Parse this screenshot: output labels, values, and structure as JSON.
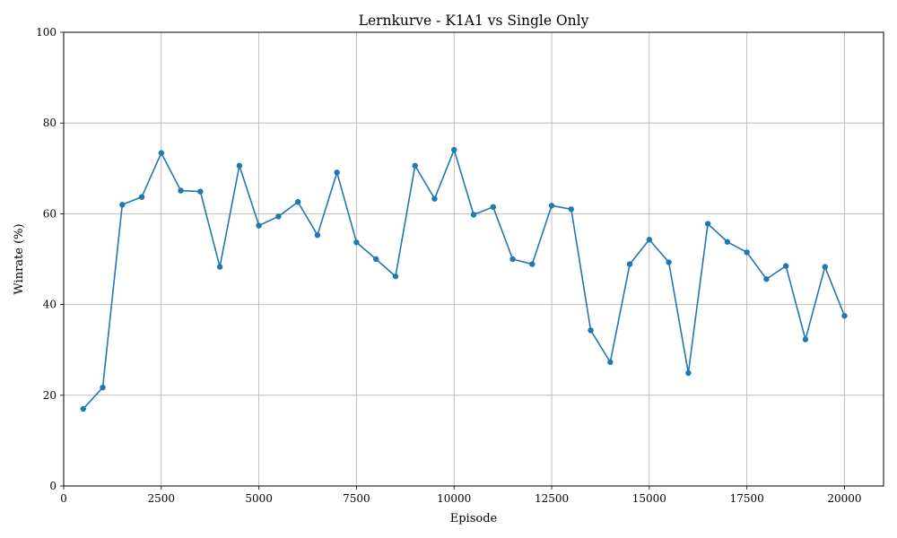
{
  "chart_data": {
    "type": "line",
    "title": "Lernkurve - K1A1 vs Single Only",
    "xlabel": "Episode",
    "ylabel": "Winrate (%)",
    "xlim": [
      0,
      21000
    ],
    "ylim": [
      0,
      100
    ],
    "xticks": [
      0,
      2500,
      5000,
      7500,
      10000,
      12500,
      15000,
      17500,
      20000
    ],
    "yticks": [
      0,
      20,
      40,
      60,
      80,
      100
    ],
    "grid": true,
    "series": [
      {
        "color": "#1f77b4",
        "marker": "circle",
        "x": [
          500,
          1000,
          1500,
          2000,
          2500,
          3000,
          3500,
          4000,
          4500,
          5000,
          5500,
          6000,
          6500,
          7000,
          7500,
          8000,
          8500,
          9000,
          9500,
          10000,
          10500,
          11000,
          11500,
          12000,
          12500,
          13000,
          13500,
          14000,
          14500,
          15000,
          15500,
          16000,
          16500,
          17000,
          17500,
          18000,
          18500,
          19000,
          19500,
          20000
        ],
        "y": [
          17.0,
          21.7,
          62.0,
          63.7,
          73.4,
          65.1,
          64.9,
          48.3,
          70.6,
          57.4,
          59.4,
          62.6,
          55.3,
          69.1,
          53.7,
          50.0,
          46.2,
          70.6,
          63.3,
          74.1,
          59.8,
          61.5,
          50.0,
          48.9,
          61.8,
          61.0,
          34.3,
          27.3,
          48.9,
          54.3,
          49.3,
          24.9,
          57.8,
          53.8,
          51.5,
          45.6,
          48.5,
          32.3,
          48.3,
          37.5
        ]
      }
    ]
  }
}
